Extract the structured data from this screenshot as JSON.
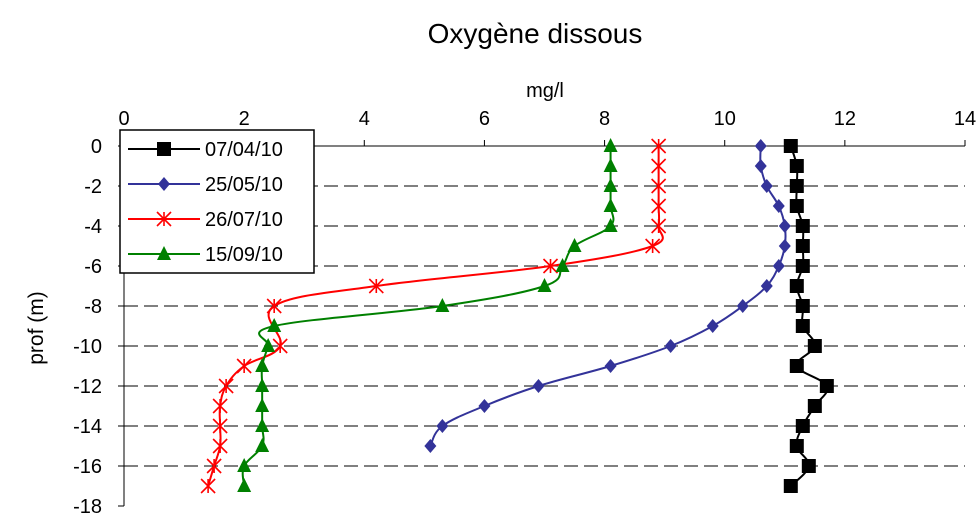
{
  "chart_data": {
    "type": "line",
    "title": "Oxygène dissous",
    "xlabel": "mg/l",
    "ylabel": "prof (m)",
    "xlim": [
      0,
      14
    ],
    "ylim": [
      -18,
      0
    ],
    "x_ticks": [
      "0",
      "2",
      "4",
      "6",
      "8",
      "10",
      "12",
      "14"
    ],
    "y_ticks": [
      "0",
      "-2",
      "-4",
      "-6",
      "-8",
      "-10",
      "-12",
      "-14",
      "-16",
      "-18"
    ],
    "grid": "horizontal dashed",
    "x_axis_position": "top",
    "legend_position": "top-left",
    "series": [
      {
        "name": "07/04/10",
        "color": "#000000",
        "marker": "square",
        "points": [
          [
            11.1,
            0
          ],
          [
            11.2,
            -1
          ],
          [
            11.2,
            -2
          ],
          [
            11.2,
            -3
          ],
          [
            11.3,
            -4
          ],
          [
            11.3,
            -5
          ],
          [
            11.3,
            -6
          ],
          [
            11.2,
            -7
          ],
          [
            11.3,
            -8
          ],
          [
            11.3,
            -9
          ],
          [
            11.5,
            -10
          ],
          [
            11.2,
            -11
          ],
          [
            11.7,
            -12
          ],
          [
            11.5,
            -13
          ],
          [
            11.3,
            -14
          ],
          [
            11.2,
            -15
          ],
          [
            11.4,
            -16
          ],
          [
            11.1,
            -17
          ]
        ]
      },
      {
        "name": "25/05/10",
        "color": "#333399",
        "marker": "diamond",
        "points": [
          [
            10.6,
            0
          ],
          [
            10.6,
            -1
          ],
          [
            10.7,
            -2
          ],
          [
            10.9,
            -3
          ],
          [
            11.0,
            -4
          ],
          [
            11.0,
            -5
          ],
          [
            10.9,
            -6
          ],
          [
            10.7,
            -7
          ],
          [
            10.3,
            -8
          ],
          [
            9.8,
            -9
          ],
          [
            9.1,
            -10
          ],
          [
            8.1,
            -11
          ],
          [
            6.9,
            -12
          ],
          [
            6.0,
            -13
          ],
          [
            5.3,
            -14
          ],
          [
            5.1,
            -15
          ]
        ]
      },
      {
        "name": "26/07/10",
        "color": "#ff0000",
        "marker": "asterisk",
        "points": [
          [
            8.9,
            0
          ],
          [
            8.9,
            -1
          ],
          [
            8.9,
            -2
          ],
          [
            8.9,
            -3
          ],
          [
            8.9,
            -4
          ],
          [
            8.8,
            -5
          ],
          [
            7.1,
            -6
          ],
          [
            4.2,
            -7
          ],
          [
            2.5,
            -8
          ],
          [
            2.6,
            -10
          ],
          [
            2.0,
            -11
          ],
          [
            1.7,
            -12
          ],
          [
            1.6,
            -13
          ],
          [
            1.6,
            -14
          ],
          [
            1.6,
            -15
          ],
          [
            1.5,
            -16
          ],
          [
            1.4,
            -17
          ]
        ]
      },
      {
        "name": "15/09/10",
        "color": "#008000",
        "marker": "triangle",
        "points": [
          [
            8.1,
            0
          ],
          [
            8.1,
            -1
          ],
          [
            8.1,
            -2
          ],
          [
            8.1,
            -3
          ],
          [
            8.1,
            -4
          ],
          [
            7.5,
            -5
          ],
          [
            7.3,
            -6
          ],
          [
            7.0,
            -7
          ],
          [
            5.3,
            -8
          ],
          [
            2.5,
            -9
          ],
          [
            2.4,
            -10
          ],
          [
            2.3,
            -11
          ],
          [
            2.3,
            -12
          ],
          [
            2.3,
            -13
          ],
          [
            2.3,
            -14
          ],
          [
            2.3,
            -15
          ],
          [
            2.0,
            -16
          ],
          [
            2.0,
            -17
          ]
        ]
      }
    ]
  }
}
